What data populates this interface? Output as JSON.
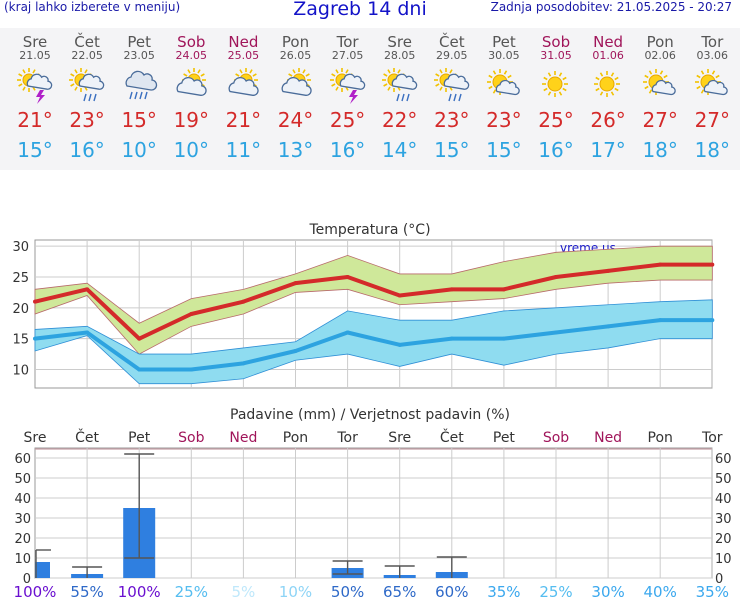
{
  "header": {
    "menu_note": "(kraj lahko izberete v meniju)",
    "title": "Zagreb 14 dni",
    "updated": "Zadnja posodobitev: 21.05.2025 - 20:27"
  },
  "forecast_days": [
    {
      "day": "Sre",
      "date": "21.05",
      "weekend": false,
      "icon": "sun-cloud-thunderstorm-icon",
      "tmax": "21°",
      "tmin": "15°"
    },
    {
      "day": "Čet",
      "date": "22.05",
      "weekend": false,
      "icon": "sun-cloud-rain-icon",
      "tmax": "23°",
      "tmin": "16°"
    },
    {
      "day": "Pet",
      "date": "23.05",
      "weekend": false,
      "icon": "cloud-heavy-rain-icon",
      "tmax": "15°",
      "tmin": "10°"
    },
    {
      "day": "Sob",
      "date": "24.05",
      "weekend": true,
      "icon": "sun-cloud-icon",
      "tmax": "19°",
      "tmin": "10°"
    },
    {
      "day": "Ned",
      "date": "25.05",
      "weekend": true,
      "icon": "sun-cloud-icon",
      "tmax": "21°",
      "tmin": "11°"
    },
    {
      "day": "Pon",
      "date": "26.05",
      "weekend": false,
      "icon": "sun-cloud-icon",
      "tmax": "24°",
      "tmin": "13°"
    },
    {
      "day": "Tor",
      "date": "27.05",
      "weekend": false,
      "icon": "sun-cloud-thunderstorm-icon",
      "tmax": "25°",
      "tmin": "16°"
    },
    {
      "day": "Sre",
      "date": "28.05",
      "weekend": false,
      "icon": "sun-cloud-rain-icon",
      "tmax": "22°",
      "tmin": "14°"
    },
    {
      "day": "Čet",
      "date": "29.05",
      "weekend": false,
      "icon": "sun-cloud-rain-icon",
      "tmax": "23°",
      "tmin": "15°"
    },
    {
      "day": "Pet",
      "date": "30.05",
      "weekend": false,
      "icon": "sun-small-cloud-icon",
      "tmax": "23°",
      "tmin": "15°"
    },
    {
      "day": "Sob",
      "date": "31.05",
      "weekend": true,
      "icon": "sun-icon",
      "tmax": "25°",
      "tmin": "16°"
    },
    {
      "day": "Ned",
      "date": "01.06",
      "weekend": true,
      "icon": "sun-icon",
      "tmax": "26°",
      "tmin": "17°"
    },
    {
      "day": "Pon",
      "date": "02.06",
      "weekend": false,
      "icon": "sun-small-cloud-icon",
      "tmax": "27°",
      "tmin": "18°"
    },
    {
      "day": "Tor",
      "date": "03.06",
      "weekend": false,
      "icon": "sun-small-cloud-icon",
      "tmax": "27°",
      "tmin": "18°"
    }
  ],
  "colors": {
    "weekend": "#a0155a",
    "tmax": "#d42a2a",
    "tmin": "#2da3e0",
    "temp_max_band": "#cfe89a",
    "temp_min_band": "#8fdcf0",
    "precip_bar": "#2f7fe0"
  },
  "chart_data": [
    {
      "type": "line",
      "title": "Temperatura (°C)",
      "watermark": "vreme.us",
      "x_count": 14,
      "ylim": [
        7,
        31
      ],
      "yticks": [
        10,
        15,
        20,
        25,
        30
      ],
      "grid": true,
      "series": [
        {
          "values": [
            21,
            23,
            15,
            19,
            21,
            24,
            25,
            22,
            23,
            23,
            25,
            26,
            27,
            27
          ]
        },
        {
          "values": [
            15,
            16,
            10,
            10,
            11,
            13,
            16,
            14,
            15,
            15,
            16,
            17,
            18,
            18
          ]
        }
      ],
      "bands": [
        {
          "low": [
            19,
            22,
            12.5,
            17,
            19,
            22.5,
            23,
            20.5,
            21,
            21.5,
            23,
            24,
            24.5,
            24.5
          ],
          "high": [
            23,
            24,
            17.5,
            21.5,
            23,
            25.5,
            28.5,
            25.5,
            25.5,
            27.5,
            29,
            29.5,
            30,
            30
          ]
        },
        {
          "low": [
            13,
            15.5,
            7.7,
            7.7,
            8.5,
            11.5,
            12.5,
            10.5,
            12.5,
            10.7,
            12.5,
            13.5,
            15,
            15
          ],
          "high": [
            16.5,
            17,
            12.5,
            12.5,
            13.5,
            14.5,
            19.5,
            18,
            18,
            19.5,
            20,
            20.5,
            21,
            21.3
          ]
        }
      ]
    },
    {
      "type": "bar",
      "title": "Padavine (mm) / Verjetnost padavin (%)",
      "categories": [
        "Sre",
        "Čet",
        "Pet",
        "Sob",
        "Ned",
        "Pon",
        "Tor",
        "Sre",
        "Čet",
        "Pet",
        "Sob",
        "Ned",
        "Pon",
        "Tor"
      ],
      "weekend": [
        false,
        false,
        false,
        true,
        true,
        false,
        false,
        false,
        false,
        false,
        true,
        true,
        false,
        false
      ],
      "ylim": [
        0,
        65
      ],
      "yticks": [
        0,
        10,
        20,
        30,
        40,
        50,
        60
      ],
      "values": [
        8,
        2,
        35,
        0,
        0,
        0,
        5,
        1.5,
        3,
        0,
        0,
        0,
        0,
        0
      ],
      "error_low": [
        0,
        0,
        10,
        0,
        0,
        0,
        2,
        0,
        0,
        0,
        0,
        0,
        0,
        0
      ],
      "error_high": [
        14,
        5.5,
        62,
        0,
        0,
        0,
        8.5,
        6,
        10.5,
        0,
        0,
        0,
        0,
        0
      ],
      "probabilities": [
        "100%",
        "55%",
        "100%",
        "25%",
        "5%",
        "10%",
        "50%",
        "65%",
        "60%",
        "35%",
        "25%",
        "30%",
        "40%",
        "35%"
      ],
      "probability_colors": [
        "#6a0fd0",
        "#2e69c8",
        "#6a0fd0",
        "#55bdf0",
        "#bfe8fb",
        "#8ed4f6",
        "#2e69c8",
        "#2e69c8",
        "#2e69c8",
        "#3ba8ee",
        "#55bdf0",
        "#3ba8ee",
        "#3ba8ee",
        "#3ba8ee"
      ]
    }
  ]
}
